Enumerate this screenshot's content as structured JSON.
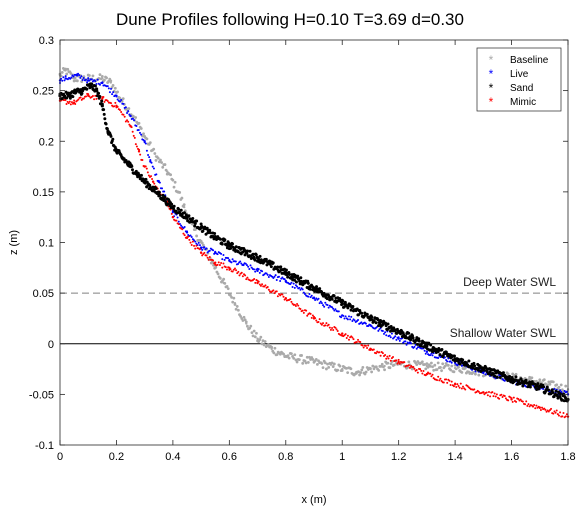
{
  "chart_data": {
    "type": "scatter",
    "title": "Dune Profiles following H=0.10 T=3.69 d=0.30",
    "xlabel": "x (m)",
    "ylabel": "z (m)",
    "xlim": [
      0,
      1.8
    ],
    "ylim": [
      -0.1,
      0.3
    ],
    "xticks": [
      "0",
      "0.2",
      "0.4",
      "0.6",
      "0.8",
      "1",
      "1.2",
      "1.4",
      "1.6",
      "1.8"
    ],
    "yticks": [
      "-0.1",
      "-0.05",
      "0",
      "0.05",
      "0.1",
      "0.15",
      "0.2",
      "0.25",
      "0.3"
    ],
    "legend_position": "top-right",
    "reference_lines": [
      {
        "label": "Deep Water SWL",
        "z": 0.05,
        "style": "dashed",
        "color": "#808080"
      },
      {
        "label": "Shallow Water SWL",
        "z": 0.0,
        "style": "solid",
        "color": "#000000"
      }
    ],
    "series": [
      {
        "name": "Baseline",
        "color": "#aaaaaa",
        "marker": "asterisk",
        "points": [
          [
            0.0,
            0.265
          ],
          [
            0.02,
            0.27
          ],
          [
            0.05,
            0.262
          ],
          [
            0.1,
            0.262
          ],
          [
            0.15,
            0.262
          ],
          [
            0.18,
            0.258
          ],
          [
            0.22,
            0.24
          ],
          [
            0.26,
            0.225
          ],
          [
            0.3,
            0.205
          ],
          [
            0.34,
            0.185
          ],
          [
            0.38,
            0.17
          ],
          [
            0.42,
            0.15
          ],
          [
            0.44,
            0.135
          ],
          [
            0.46,
            0.12
          ],
          [
            0.5,
            0.1
          ],
          [
            0.54,
            0.08
          ],
          [
            0.58,
            0.06
          ],
          [
            0.62,
            0.04
          ],
          [
            0.66,
            0.02
          ],
          [
            0.7,
            0.005
          ],
          [
            0.75,
            -0.005
          ],
          [
            0.8,
            -0.012
          ],
          [
            0.9,
            -0.018
          ],
          [
            1.0,
            -0.025
          ],
          [
            1.05,
            -0.028
          ],
          [
            1.1,
            -0.025
          ],
          [
            1.15,
            -0.022
          ],
          [
            1.2,
            -0.02
          ],
          [
            1.3,
            -0.022
          ],
          [
            1.4,
            -0.024
          ],
          [
            1.5,
            -0.028
          ],
          [
            1.6,
            -0.033
          ],
          [
            1.7,
            -0.038
          ],
          [
            1.8,
            -0.045
          ]
        ]
      },
      {
        "name": "Live",
        "color": "#0000ff",
        "marker": "asterisk",
        "points": [
          [
            0.0,
            0.26
          ],
          [
            0.02,
            0.262
          ],
          [
            0.06,
            0.265
          ],
          [
            0.1,
            0.26
          ],
          [
            0.15,
            0.258
          ],
          [
            0.2,
            0.245
          ],
          [
            0.25,
            0.225
          ],
          [
            0.3,
            0.2
          ],
          [
            0.32,
            0.18
          ],
          [
            0.35,
            0.16
          ],
          [
            0.4,
            0.13
          ],
          [
            0.45,
            0.11
          ],
          [
            0.5,
            0.095
          ],
          [
            0.55,
            0.09
          ],
          [
            0.6,
            0.082
          ],
          [
            0.65,
            0.078
          ],
          [
            0.7,
            0.072
          ],
          [
            0.8,
            0.062
          ],
          [
            0.9,
            0.045
          ],
          [
            1.0,
            0.028
          ],
          [
            1.1,
            0.018
          ],
          [
            1.2,
            0.005
          ],
          [
            1.3,
            -0.008
          ],
          [
            1.4,
            -0.018
          ],
          [
            1.5,
            -0.028
          ],
          [
            1.6,
            -0.037
          ],
          [
            1.7,
            -0.043
          ],
          [
            1.8,
            -0.05
          ]
        ]
      },
      {
        "name": "Sand",
        "color": "#000000",
        "marker": "asterisk",
        "points": [
          [
            0.0,
            0.245
          ],
          [
            0.03,
            0.245
          ],
          [
            0.05,
            0.248
          ],
          [
            0.08,
            0.25
          ],
          [
            0.11,
            0.255
          ],
          [
            0.13,
            0.25
          ],
          [
            0.15,
            0.235
          ],
          [
            0.17,
            0.21
          ],
          [
            0.2,
            0.19
          ],
          [
            0.25,
            0.175
          ],
          [
            0.3,
            0.16
          ],
          [
            0.35,
            0.148
          ],
          [
            0.4,
            0.135
          ],
          [
            0.45,
            0.125
          ],
          [
            0.5,
            0.115
          ],
          [
            0.55,
            0.105
          ],
          [
            0.6,
            0.097
          ],
          [
            0.7,
            0.085
          ],
          [
            0.8,
            0.07
          ],
          [
            0.9,
            0.055
          ],
          [
            1.0,
            0.04
          ],
          [
            1.1,
            0.025
          ],
          [
            1.2,
            0.012
          ],
          [
            1.3,
            -0.002
          ],
          [
            1.4,
            -0.015
          ],
          [
            1.5,
            -0.025
          ],
          [
            1.6,
            -0.035
          ],
          [
            1.7,
            -0.043
          ],
          [
            1.8,
            -0.055
          ]
        ]
      },
      {
        "name": "Mimic",
        "color": "#ff0000",
        "marker": "asterisk",
        "points": [
          [
            0.0,
            0.24
          ],
          [
            0.05,
            0.238
          ],
          [
            0.1,
            0.245
          ],
          [
            0.15,
            0.242
          ],
          [
            0.2,
            0.235
          ],
          [
            0.25,
            0.215
          ],
          [
            0.28,
            0.19
          ],
          [
            0.3,
            0.175
          ],
          [
            0.33,
            0.16
          ],
          [
            0.35,
            0.15
          ],
          [
            0.38,
            0.14
          ],
          [
            0.4,
            0.125
          ],
          [
            0.45,
            0.105
          ],
          [
            0.5,
            0.09
          ],
          [
            0.55,
            0.08
          ],
          [
            0.6,
            0.075
          ],
          [
            0.7,
            0.06
          ],
          [
            0.8,
            0.045
          ],
          [
            0.9,
            0.025
          ],
          [
            1.0,
            0.01
          ],
          [
            1.1,
            -0.005
          ],
          [
            1.2,
            -0.018
          ],
          [
            1.3,
            -0.03
          ],
          [
            1.4,
            -0.04
          ],
          [
            1.5,
            -0.048
          ],
          [
            1.6,
            -0.055
          ],
          [
            1.7,
            -0.063
          ],
          [
            1.8,
            -0.072
          ]
        ]
      }
    ]
  }
}
